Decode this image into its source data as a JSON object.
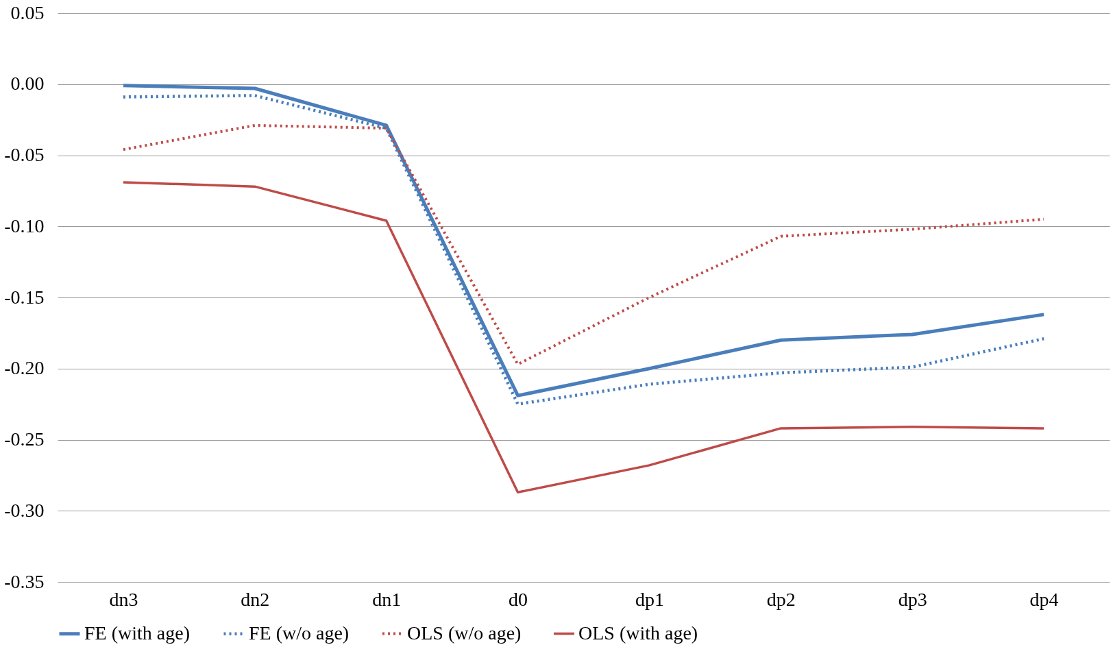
{
  "chart_data": {
    "type": "line",
    "categories": [
      "dn3",
      "dn2",
      "dn1",
      "d0",
      "dp1",
      "dp2",
      "dp3",
      "dp4"
    ],
    "series": [
      {
        "name": "FE (with age)",
        "color": "#4a7ebb",
        "line_style": "solid",
        "values": [
          -0.001,
          -0.003,
          -0.029,
          -0.219,
          -0.2,
          -0.18,
          -0.176,
          -0.162
        ]
      },
      {
        "name": "FE (w/o age)",
        "color": "#4a7ebb",
        "line_style": "dotted",
        "values": [
          -0.009,
          -0.008,
          -0.031,
          -0.225,
          -0.211,
          -0.203,
          -0.199,
          -0.179
        ]
      },
      {
        "name": "OLS (w/o age)",
        "color": "#be4b48",
        "line_style": "dotted",
        "values": [
          -0.046,
          -0.029,
          -0.031,
          -0.197,
          -0.15,
          -0.107,
          -0.102,
          -0.095
        ]
      },
      {
        "name": "OLS (with age)",
        "color": "#be4b48",
        "line_style": "solid",
        "values": [
          -0.069,
          -0.072,
          -0.096,
          -0.287,
          -0.268,
          -0.242,
          -0.241,
          -0.242
        ]
      }
    ],
    "ylim": [
      -0.35,
      0.05
    ],
    "yticks": [
      {
        "value": 0.05,
        "label": "0.05"
      },
      {
        "value": 0,
        "label": "0.00"
      },
      {
        "value": -0.05,
        "label": "-0.05"
      },
      {
        "value": -0.1,
        "label": "-0.10"
      },
      {
        "value": -0.15,
        "label": "-0.15"
      },
      {
        "value": -0.2,
        "label": "-0.20"
      },
      {
        "value": -0.25,
        "label": "-0.25"
      },
      {
        "value": -0.3,
        "label": "-0.30"
      },
      {
        "value": -0.35,
        "label": "-0.35"
      }
    ],
    "grid": "y",
    "legend": "bottom",
    "marker": "none"
  }
}
